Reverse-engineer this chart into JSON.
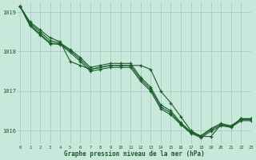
{
  "background_color": "#c8e8dc",
  "grid_color": "#a0c8bc",
  "line_color": "#1a5c2a",
  "xlabel": "Graphe pression niveau de la mer (hPa)",
  "xlim": [
    -0.3,
    23
  ],
  "ylim": [
    1015.65,
    1019.25
  ],
  "yticks": [
    1016,
    1017,
    1018,
    1019
  ],
  "xticks": [
    0,
    1,
    2,
    3,
    4,
    5,
    6,
    7,
    8,
    9,
    10,
    11,
    12,
    13,
    14,
    15,
    16,
    17,
    18,
    19,
    20,
    21,
    22,
    23
  ],
  "series": [
    [
      1019.15,
      1018.75,
      1018.55,
      1018.35,
      1018.25,
      1017.75,
      1017.65,
      1017.55,
      1017.6,
      1017.65,
      1017.65,
      1017.65,
      1017.65,
      1017.55,
      1017.0,
      1016.7,
      1016.35,
      1016.0,
      1015.85,
      1015.85,
      1016.15,
      1016.1,
      1016.3,
      1016.3
    ],
    [
      1019.15,
      1018.72,
      1018.5,
      1018.28,
      1018.22,
      1018.05,
      1017.85,
      1017.6,
      1017.65,
      1017.7,
      1017.7,
      1017.7,
      1017.35,
      1017.1,
      1016.65,
      1016.5,
      1016.2,
      1015.97,
      1015.87,
      1016.05,
      1016.18,
      1016.12,
      1016.3,
      1016.3
    ],
    [
      1019.15,
      1018.68,
      1018.45,
      1018.22,
      1018.2,
      1018.02,
      1017.8,
      1017.55,
      1017.6,
      1017.65,
      1017.65,
      1017.65,
      1017.3,
      1017.05,
      1016.6,
      1016.45,
      1016.17,
      1015.95,
      1015.85,
      1016.02,
      1016.15,
      1016.1,
      1016.28,
      1016.28
    ],
    [
      1019.15,
      1018.65,
      1018.42,
      1018.2,
      1018.18,
      1017.98,
      1017.75,
      1017.5,
      1017.55,
      1017.6,
      1017.6,
      1017.6,
      1017.25,
      1017.0,
      1016.55,
      1016.4,
      1016.15,
      1015.93,
      1015.82,
      1015.98,
      1016.12,
      1016.08,
      1016.25,
      1016.25
    ]
  ]
}
